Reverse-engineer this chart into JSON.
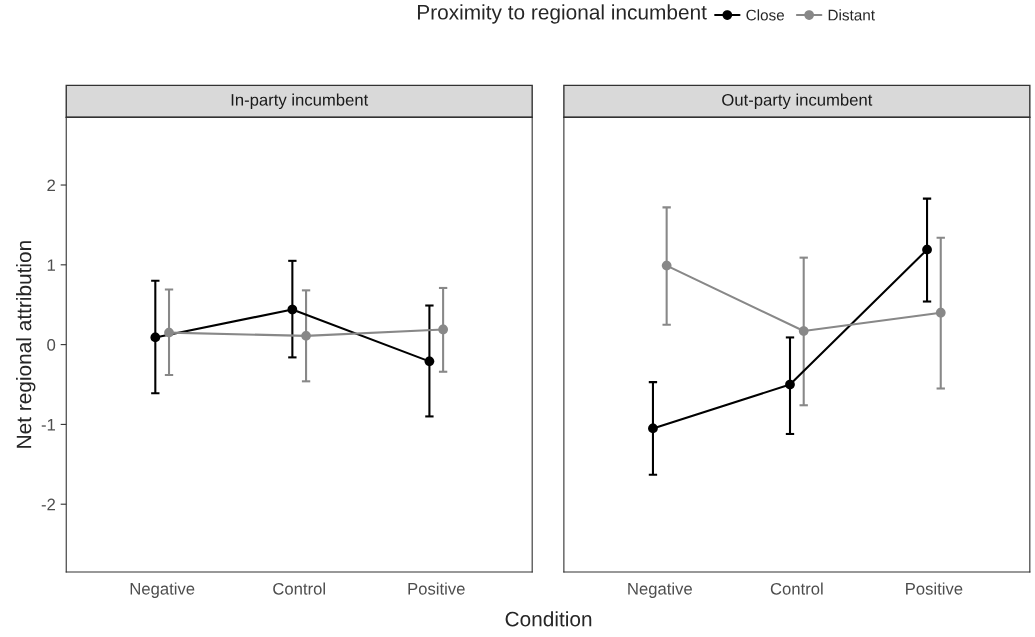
{
  "chart_data": [
    {
      "type": "line",
      "title": "In-party incumbent",
      "ylabel": "Net regional attribution",
      "xlabel": "Condition",
      "legend_title": "Proximity to regional incumbent",
      "legend": "top",
      "marker": "circle",
      "categories": [
        "Negative",
        "Control",
        "Positive"
      ],
      "ylim": [
        -2.85,
        2.85
      ],
      "yticks": [
        -2,
        -1,
        0,
        1,
        2
      ],
      "series": [
        {
          "name": "Close",
          "color": "#000000",
          "values": [
            0.09,
            0.44,
            -0.21
          ],
          "errors": [
            [
              -0.61,
              0.8
            ],
            [
              -0.16,
              1.05
            ],
            [
              -0.9,
              0.49
            ]
          ]
        },
        {
          "name": "Distant",
          "color": "#888888",
          "values": [
            0.15,
            0.11,
            0.19
          ],
          "errors": [
            [
              -0.38,
              0.69
            ],
            [
              -0.46,
              0.68
            ],
            [
              -0.34,
              0.71
            ]
          ]
        }
      ]
    },
    {
      "type": "line",
      "title": "Out-party incumbent",
      "marker": "circle",
      "tick_labels": "x",
      "categories": [
        "Negative",
        "Control",
        "Positive"
      ],
      "ylim": [
        -2.85,
        2.85
      ],
      "yticks": [
        -2,
        -1,
        0,
        1,
        2
      ],
      "series": [
        {
          "color": "#000000",
          "values": [
            -1.05,
            -0.5,
            1.19
          ],
          "errors": [
            [
              -1.63,
              -0.47
            ],
            [
              -1.12,
              0.09
            ],
            [
              0.54,
              1.83
            ]
          ]
        },
        {
          "color": "#888888",
          "values": [
            0.99,
            0.17,
            0.4
          ],
          "errors": [
            [
              0.25,
              1.72
            ],
            [
              -0.76,
              1.09
            ],
            [
              -0.55,
              1.34
            ]
          ]
        }
      ]
    }
  ]
}
